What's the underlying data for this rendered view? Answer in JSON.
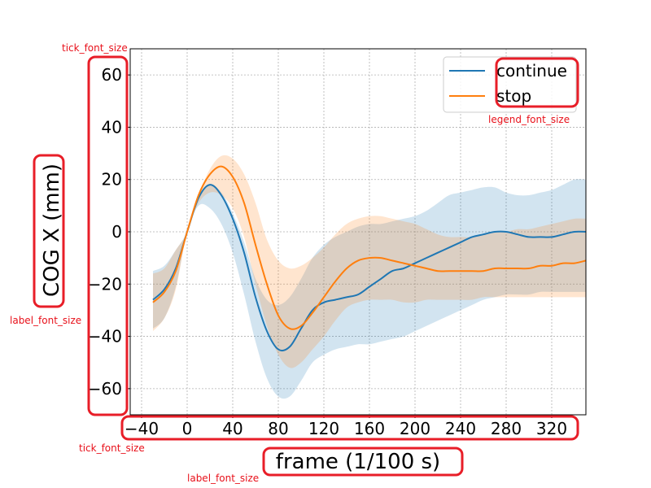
{
  "chart_data": {
    "type": "line",
    "xlabel": "frame (1/100 s)",
    "ylabel": "COG X (mm)",
    "xlim": [
      -50,
      350
    ],
    "ylim": [
      -70,
      70
    ],
    "xticks": [
      -40,
      0,
      40,
      80,
      120,
      160,
      200,
      240,
      280,
      320
    ],
    "xtick_labels": [
      "−40",
      "0",
      "40",
      "80",
      "120",
      "160",
      "200",
      "240",
      "280",
      "320"
    ],
    "yticks": [
      60,
      40,
      20,
      0,
      -20,
      -40,
      -60
    ],
    "ytick_labels": [
      "60",
      "40",
      "20",
      "0",
      "−20",
      "−40",
      "−60"
    ],
    "grid": true,
    "legend_position": "top-right",
    "series": [
      {
        "name": "continue",
        "color": "#1f77b4",
        "band_color": "#1f77b4",
        "x": [
          -30,
          -20,
          -10,
          0,
          10,
          20,
          30,
          40,
          50,
          60,
          70,
          80,
          90,
          100,
          110,
          120,
          130,
          140,
          150,
          160,
          170,
          180,
          190,
          200,
          210,
          220,
          230,
          240,
          250,
          260,
          270,
          280,
          290,
          300,
          310,
          320,
          330,
          340,
          350
        ],
        "y": [
          -26,
          -22,
          -14,
          0,
          13,
          18,
          14,
          5,
          -8,
          -25,
          -38,
          -45,
          -44,
          -37,
          -30,
          -27,
          -26,
          -25,
          -24,
          -21,
          -18,
          -15,
          -14,
          -12,
          -10,
          -8,
          -6,
          -4,
          -2,
          -1,
          0,
          0,
          -1,
          -2,
          -2,
          -2,
          -1,
          0,
          0
        ],
        "upper": [
          -15,
          -13,
          -7,
          0,
          13,
          18,
          15,
          7,
          -4,
          -18,
          -26,
          -28,
          -25,
          -18,
          -10,
          -5,
          -2,
          0,
          2,
          3,
          3,
          4,
          5,
          6,
          8,
          11,
          14,
          15,
          16,
          17,
          17,
          15,
          14,
          14,
          15,
          16,
          18,
          20,
          20
        ],
        "lower": [
          -37,
          -33,
          -21,
          0,
          10,
          9,
          3,
          -8,
          -24,
          -42,
          -56,
          -63,
          -63,
          -57,
          -50,
          -47,
          -45,
          -44,
          -43,
          -43,
          -42,
          -41,
          -40,
          -38,
          -36,
          -34,
          -32,
          -30,
          -28,
          -26,
          -25,
          -24,
          -24,
          -24,
          -23,
          -23,
          -23,
          -23,
          -23
        ]
      },
      {
        "name": "stop",
        "color": "#ff7f0e",
        "band_color": "#ff7f0e",
        "x": [
          -30,
          -20,
          -10,
          0,
          10,
          20,
          30,
          40,
          50,
          60,
          70,
          80,
          90,
          100,
          110,
          120,
          130,
          140,
          150,
          160,
          170,
          180,
          190,
          200,
          210,
          220,
          230,
          240,
          250,
          260,
          270,
          280,
          290,
          300,
          310,
          320,
          330,
          340,
          350
        ],
        "y": [
          -27,
          -23,
          -15,
          0,
          14,
          22,
          25,
          21,
          11,
          -5,
          -20,
          -32,
          -37,
          -36,
          -31,
          -25,
          -19,
          -14,
          -11,
          -10,
          -10,
          -11,
          -12,
          -13,
          -14,
          -15,
          -15,
          -15,
          -15,
          -15,
          -14,
          -14,
          -14,
          -14,
          -13,
          -13,
          -12,
          -12,
          -11
        ],
        "upper": [
          -16,
          -14,
          -7,
          0,
          14,
          24,
          29,
          28,
          22,
          11,
          -3,
          -11,
          -14,
          -13,
          -10,
          -6,
          -1,
          3,
          5,
          6,
          6,
          5,
          4,
          3,
          1,
          -1,
          -2,
          -2,
          -2,
          -1,
          0,
          0,
          1,
          1,
          2,
          3,
          4,
          5,
          5
        ],
        "lower": [
          -38,
          -33,
          -22,
          0,
          11,
          15,
          14,
          9,
          -2,
          -20,
          -36,
          -47,
          -52,
          -50,
          -45,
          -40,
          -34,
          -29,
          -27,
          -26,
          -26,
          -26,
          -27,
          -27,
          -26,
          -26,
          -26,
          -26,
          -26,
          -25,
          -25,
          -25,
          -25,
          -25,
          -25,
          -25,
          -25,
          -25,
          -25
        ]
      }
    ]
  },
  "annotations": {
    "tick_font_size_top": "tick_font_size",
    "tick_font_size_bottom": "tick_font_size",
    "label_font_size_left": "label_font_size",
    "label_font_size_bottom": "label_font_size",
    "legend_font_size": "legend_font_size",
    "highlight_color": "#e81e28"
  }
}
